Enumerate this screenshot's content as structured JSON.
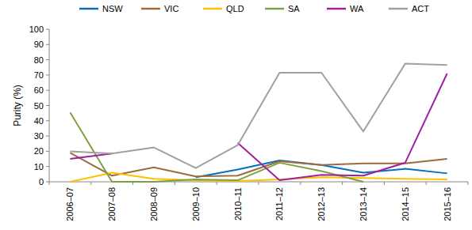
{
  "chart_data": {
    "type": "line",
    "y_label": "Purity (%)",
    "categories": [
      "2006–07",
      "2007–08",
      "2008–09",
      "2009–10",
      "2010–11",
      "2011–12",
      "2012–13",
      "2013–14",
      "2014–15",
      "2015–16"
    ],
    "series": [
      {
        "name": "NSW",
        "color": "#0070c0",
        "values": [
          null,
          null,
          null,
          3,
          8,
          14,
          11,
          6,
          8.5,
          5.5
        ]
      },
      {
        "name": "VIC",
        "color": "#9c6b3f",
        "values": [
          19,
          4,
          9.5,
          3.5,
          4,
          13.5,
          11,
          12,
          12,
          15
        ]
      },
      {
        "name": "QLD",
        "color": "#ffc000",
        "values": [
          0,
          6,
          2,
          1,
          0.5,
          1.5,
          3,
          2.5,
          2,
          1.5
        ]
      },
      {
        "name": "SA",
        "color": "#7ba23f",
        "values": [
          45.5,
          0,
          0,
          1.5,
          1,
          12.5,
          7,
          0,
          null,
          null
        ]
      },
      {
        "name": "WA",
        "color": "#a020a0",
        "values": [
          15,
          18.5,
          null,
          null,
          25.5,
          1,
          4.5,
          4,
          12.5,
          71
        ]
      },
      {
        "name": "ACT",
        "color": "#a0a0a0",
        "values": [
          20,
          18.5,
          22.5,
          9,
          24,
          71.5,
          71.5,
          33,
          77.5,
          76.5
        ]
      }
    ],
    "ylim": [
      0,
      100
    ],
    "yticks": [
      0,
      10,
      20,
      30,
      40,
      50,
      60,
      70,
      80,
      90,
      100
    ],
    "grid": false,
    "legend": "top"
  }
}
